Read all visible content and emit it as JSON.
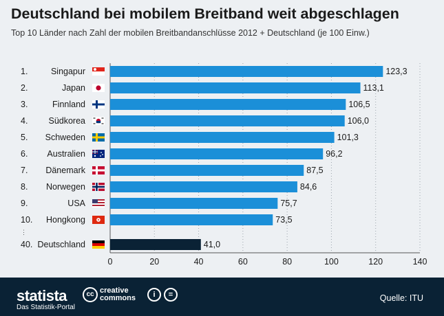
{
  "header": {
    "title": "Deutschland bei mobilem Breitband weit abgeschlagen",
    "subtitle": "Top 10 Länder nach Zahl der mobilen Breitbandanschlüsse 2012 + Deutschland (je 100 Einw.)"
  },
  "chart_data": {
    "type": "bar",
    "orientation": "horizontal",
    "ranks": [
      "1.",
      "2.",
      "3.",
      "4.",
      "5.",
      "6.",
      "7.",
      "8.",
      "9.",
      "10.",
      "40."
    ],
    "categories": [
      "Singapur",
      "Japan",
      "Finnland",
      "Südkorea",
      "Schweden",
      "Australien",
      "Dänemark",
      "Norwegen",
      "USA",
      "Hongkong",
      "Deutschland"
    ],
    "values": [
      123.3,
      113.1,
      106.5,
      106.0,
      101.3,
      96.2,
      87.5,
      84.6,
      75.7,
      73.5,
      41.0
    ],
    "value_labels": [
      "123,3",
      "113,1",
      "106,5",
      "106,0",
      "101,3",
      "96,2",
      "87,5",
      "84,6",
      "75,7",
      "73,5",
      "41,0"
    ],
    "flags": [
      "flag-singapore-icon",
      "flag-japan-icon",
      "flag-finland-icon",
      "flag-south-korea-icon",
      "flag-sweden-icon",
      "flag-australia-icon",
      "flag-denmark-icon",
      "flag-norway-icon",
      "flag-usa-icon",
      "flag-hong-kong-icon",
      "flag-germany-icon"
    ],
    "xlim": [
      0,
      140
    ],
    "xticks": [
      0,
      20,
      40,
      60,
      80,
      100,
      120,
      140
    ],
    "grid": "vertical-dotted",
    "colors": {
      "bar": "#1b8fd8",
      "highlight_bar": "#0a2235"
    }
  },
  "footer": {
    "brand": "statista",
    "brand_sub": "Das Statistik-Portal",
    "cc_line1": "creative",
    "cc_line2": "commons",
    "source": "Quelle: ITU"
  }
}
